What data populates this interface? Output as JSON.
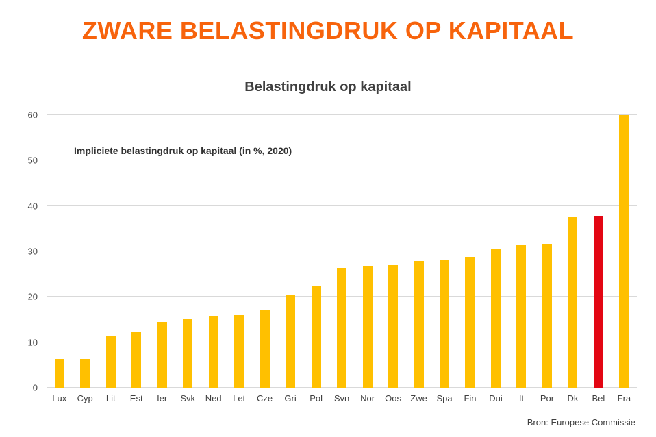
{
  "header": {
    "title": "ZWARE BELASTINGDRUK OP KAPITAAL"
  },
  "footer": {
    "source": "Bron: Europese Commissie"
  },
  "colors": {
    "title_orange": "#F7630C",
    "bar_gold": "#FFC000",
    "highlight_red": "#E30613",
    "gridline_gray": "#D9D9D9",
    "text_dark": "#404040"
  },
  "chart_data": {
    "type": "bar",
    "title": "Belastingdruk op kapitaal",
    "annotation": "Impliciete belastingdruk op kapitaal (in %, 2020)",
    "categories": [
      "Lux",
      "Cyp",
      "Lit",
      "Est",
      "Ier",
      "Svk",
      "Ned",
      "Let",
      "Cze",
      "Gri",
      "Pol",
      "Svn",
      "Nor",
      "Oos",
      "Zwe",
      "Spa",
      "Fin",
      "Dui",
      "It",
      "Por",
      "Dk",
      "Bel",
      "Fra"
    ],
    "values": [
      6.3,
      6.3,
      11.5,
      12.3,
      14.4,
      15.1,
      15.7,
      16.0,
      17.2,
      20.5,
      22.5,
      26.4,
      26.8,
      27.0,
      27.9,
      28.1,
      28.8,
      30.5,
      31.4,
      31.7,
      37.5,
      37.9,
      60.0
    ],
    "highlight_category": "Bel",
    "bar_color": "#FFC000",
    "highlight_color": "#E30613",
    "xlabel": "",
    "ylabel": "",
    "ylim": [
      0,
      60
    ],
    "yticks": [
      0,
      10,
      20,
      30,
      40,
      50,
      60
    ],
    "grid": true,
    "legend": false
  }
}
